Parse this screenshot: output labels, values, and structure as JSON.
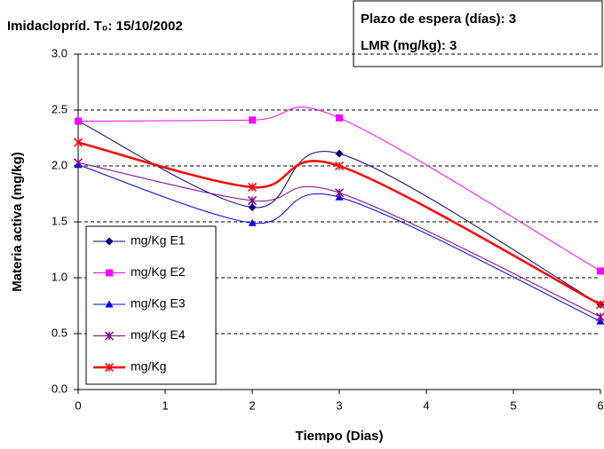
{
  "chart_data": {
    "type": "line",
    "title": "Imidaclopríd. T₀: 15/10/2002",
    "annotations": [
      "Plazo de espera (días): 3",
      "LMR (mg/kg): 3"
    ],
    "x_label": "Tiempo (Dias)",
    "y_label": "Materia activa (mg/kg)",
    "x": [
      0,
      2,
      3,
      6
    ],
    "series": [
      {
        "name": "mg/Kg E1",
        "color": "#000080",
        "marker": "diamond",
        "values": [
          2.4,
          1.63,
          2.11,
          0.76
        ]
      },
      {
        "name": "mg/Kg E2",
        "color": "#ff00ff",
        "marker": "square",
        "values": [
          2.4,
          2.41,
          2.43,
          1.06
        ]
      },
      {
        "name": "mg/Kg E3",
        "color": "#0000ff",
        "marker": "triangle",
        "values": [
          2.01,
          1.49,
          1.72,
          0.61
        ]
      },
      {
        "name": "mg/Kg E4",
        "color": "#800080",
        "marker": "asterisk",
        "values": [
          2.03,
          1.69,
          1.76,
          0.65
        ]
      },
      {
        "name": "mg/Kg",
        "color": "#ff0000",
        "marker": "asterisk",
        "values": [
          2.21,
          1.81,
          2.0,
          0.76
        ]
      }
    ],
    "xlim": [
      0,
      6
    ],
    "xticks": [
      0,
      1,
      2,
      3,
      4,
      5,
      6
    ],
    "ylim": [
      0,
      3
    ],
    "yticks": [
      {
        "value": 0,
        "label": "0.0"
      },
      {
        "value": 0.5,
        "label": "0.5"
      },
      {
        "value": 1,
        "label": "1.0"
      },
      {
        "value": 1.5,
        "label": "1.5"
      },
      {
        "value": 2,
        "label": "2.0"
      },
      {
        "value": 2.5,
        "label": "2.5"
      },
      {
        "value": 3,
        "label": "3.0"
      }
    ],
    "grid": true,
    "smooth": true,
    "legend": "lower-left"
  }
}
